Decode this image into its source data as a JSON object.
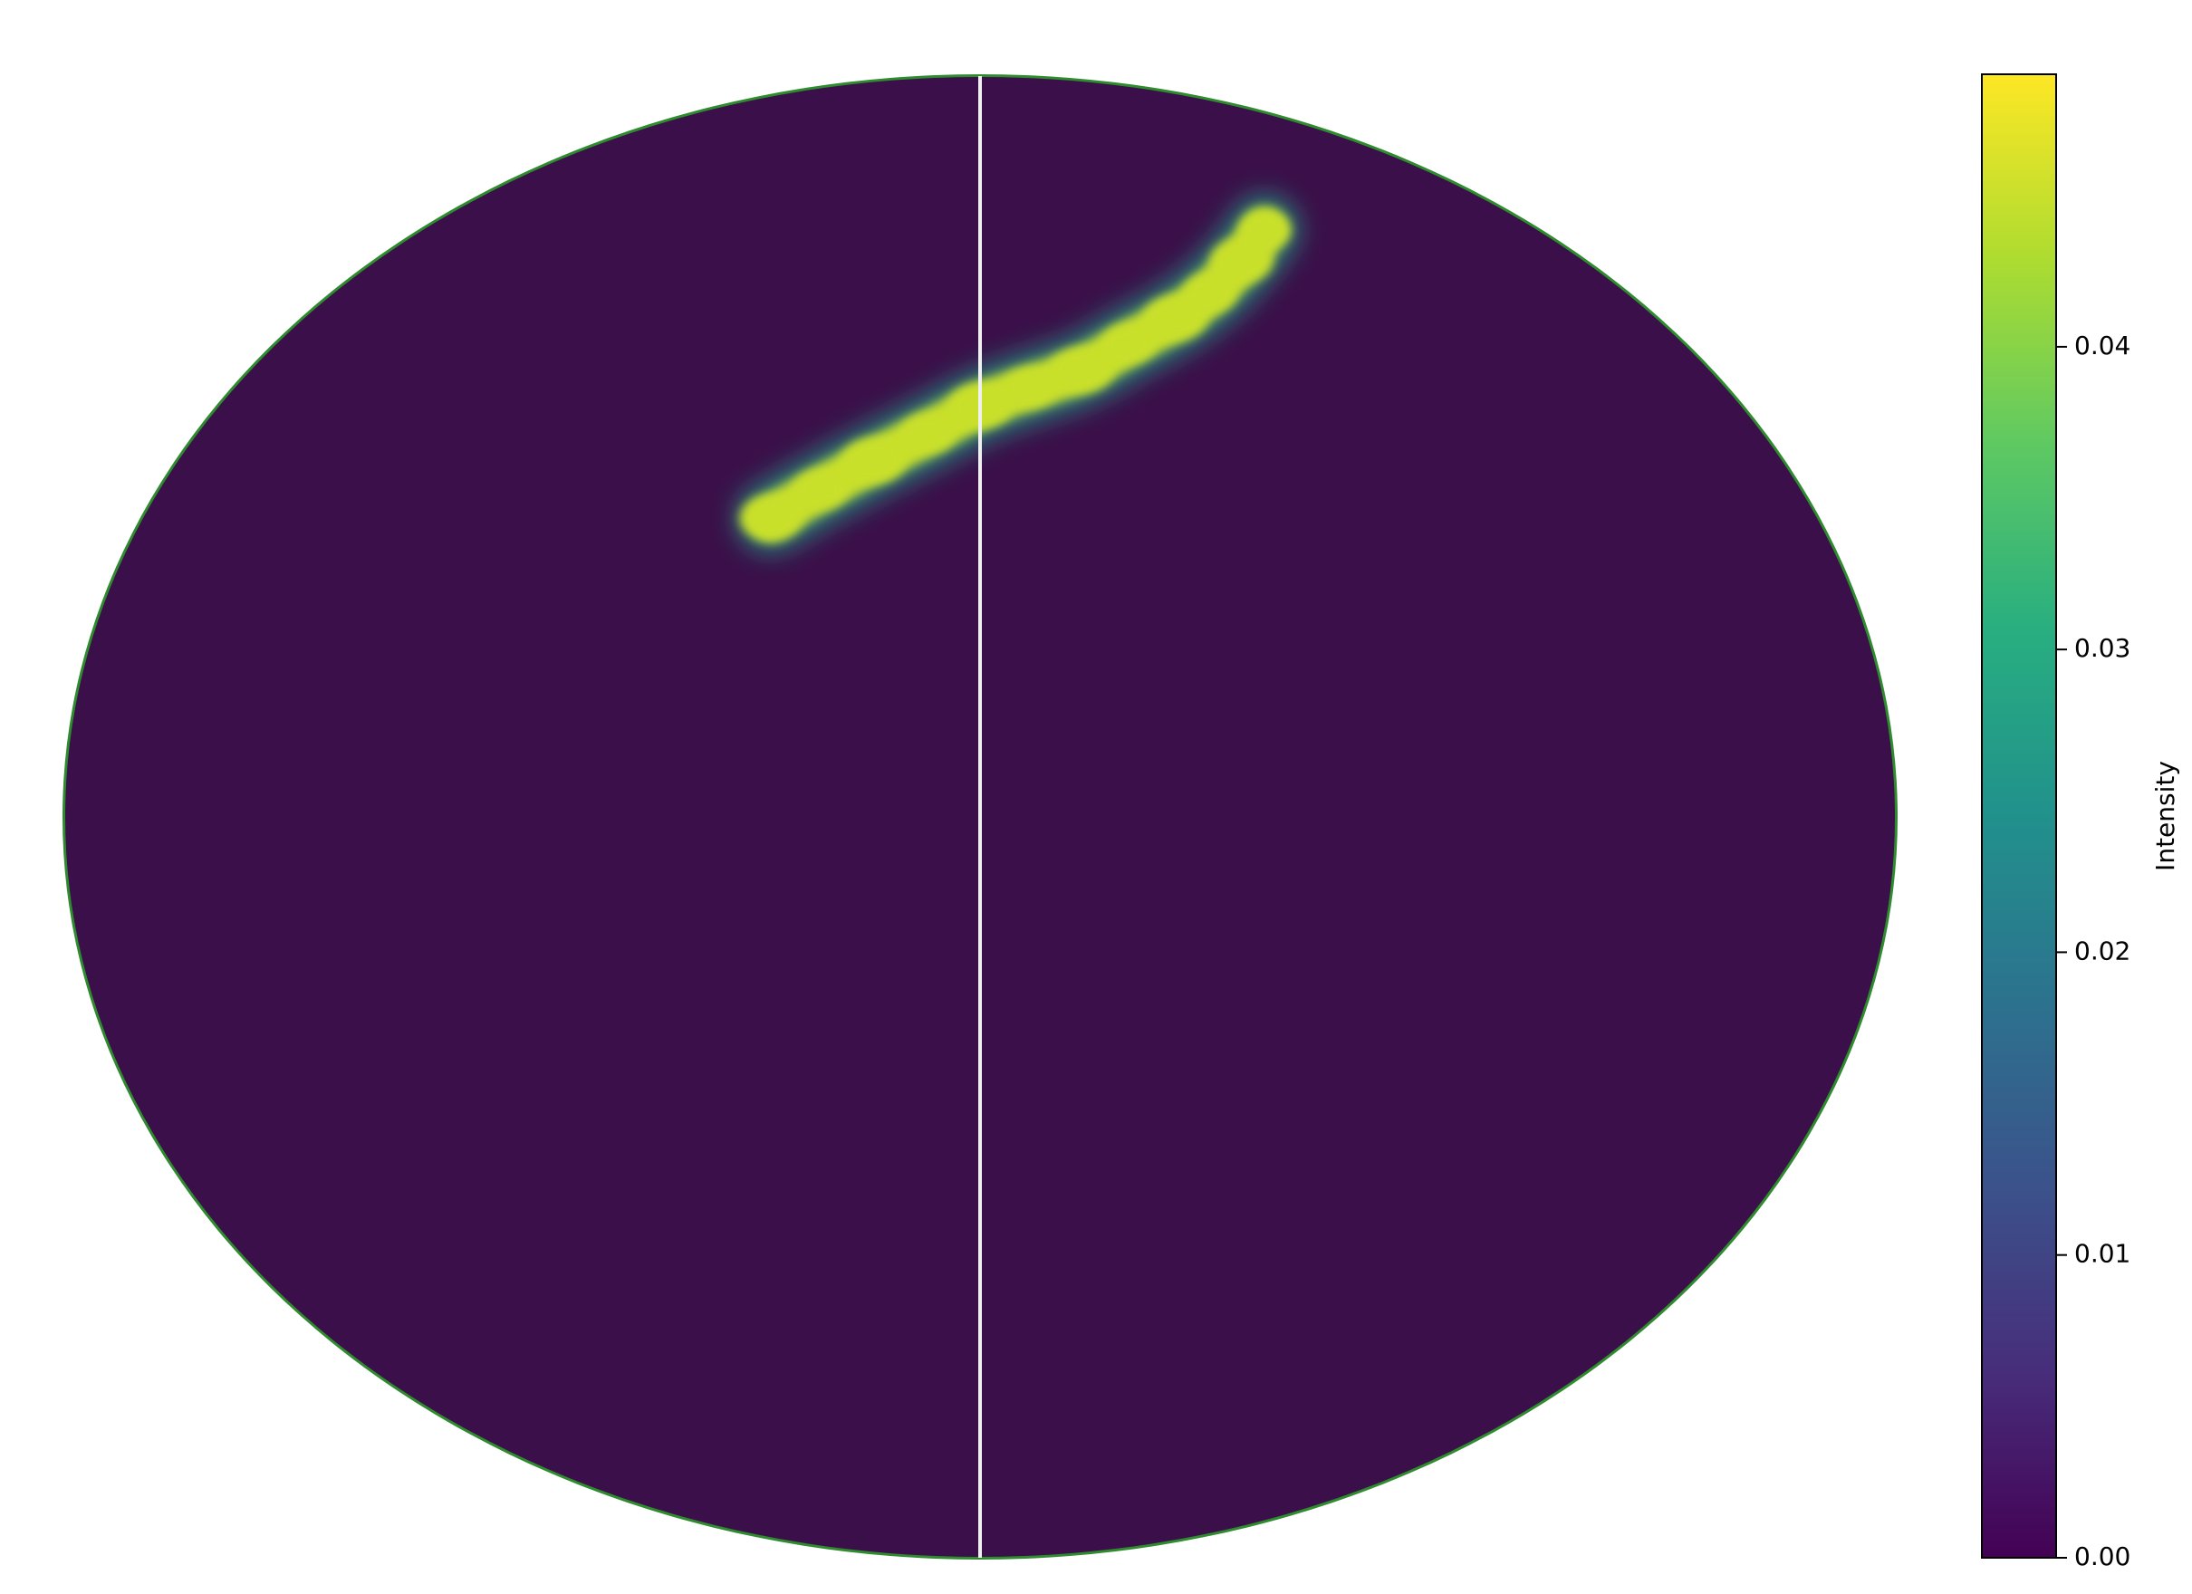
{
  "chart_data": {
    "type": "heatmap",
    "projection": "mollweide",
    "colormap": "viridis",
    "colors": {
      "background": "#3b0f49",
      "band": "#dcd81e",
      "meridian": "#f0f0f0"
    },
    "band_path": [
      {
        "lon": -45,
        "lat": 30
      },
      {
        "lon": -35,
        "lat": 33
      },
      {
        "lon": -24,
        "lat": 36
      },
      {
        "lon": -12,
        "lat": 39
      },
      {
        "lon": 0,
        "lat": 42
      },
      {
        "lon": 12,
        "lat": 44
      },
      {
        "lon": 25,
        "lat": 46
      },
      {
        "lon": 38,
        "lat": 49
      },
      {
        "lon": 52,
        "lat": 52
      },
      {
        "lon": 64,
        "lat": 55
      },
      {
        "lon": 78,
        "lat": 59
      },
      {
        "lon": 92,
        "lat": 63
      }
    ],
    "band_value": 0.045,
    "colorbar": {
      "label": "Intensity",
      "range": [
        0,
        0.049
      ],
      "ticks": [
        {
          "value": 0.0,
          "label": "0.00"
        },
        {
          "value": 0.01,
          "label": "0.01"
        },
        {
          "value": 0.02,
          "label": "0.02"
        },
        {
          "value": 0.03,
          "label": "0.03"
        },
        {
          "value": 0.04,
          "label": "0.04"
        }
      ]
    },
    "grid": false,
    "legend": "none"
  }
}
